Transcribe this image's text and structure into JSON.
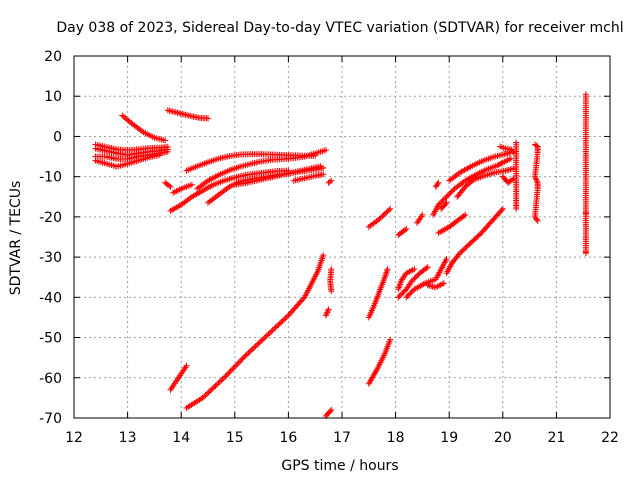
{
  "chart_data": {
    "type": "scatter",
    "title": "Day 038 of 2023, Sidereal Day-to-day VTEC variation (SDTVAR) for receiver mchl",
    "xlabel": "GPS time / hours",
    "ylabel": "SDTVAR / TECUs",
    "xlim": [
      12,
      22
    ],
    "ylim": [
      -70,
      20
    ],
    "x_ticks": [
      12,
      13,
      14,
      15,
      16,
      17,
      18,
      19,
      20,
      21,
      22
    ],
    "y_ticks": [
      -70,
      -60,
      -50,
      -40,
      -30,
      -20,
      -10,
      0,
      10,
      20
    ],
    "x_tick_labels": [
      "12",
      "13",
      "14",
      "15",
      "16",
      "17",
      "18",
      "19",
      "20",
      "21",
      "22"
    ],
    "y_tick_labels": [
      "-70",
      "-60",
      "-50",
      "-40",
      "-30",
      "-20",
      "-10",
      "0",
      "10",
      "20"
    ],
    "grid": true,
    "marker": "+",
    "color": "#ff0000",
    "series": [
      {
        "values": [
          [
            12.4,
            -2.0
          ],
          [
            12.6,
            -2.6
          ],
          [
            12.8,
            -3.2
          ],
          [
            13.0,
            -3.4
          ],
          [
            13.2,
            -3.2
          ],
          [
            13.4,
            -2.9
          ],
          [
            13.6,
            -2.8
          ],
          [
            13.75,
            -2.6
          ]
        ]
      },
      {
        "values": [
          [
            12.4,
            -3.0
          ],
          [
            12.6,
            -3.6
          ],
          [
            12.8,
            -4.2
          ],
          [
            13.0,
            -4.6
          ],
          [
            13.2,
            -4.2
          ],
          [
            13.4,
            -3.8
          ],
          [
            13.6,
            -3.5
          ],
          [
            13.75,
            -3.2
          ]
        ]
      },
      {
        "values": [
          [
            12.4,
            -5.0
          ],
          [
            12.6,
            -5.0
          ],
          [
            12.8,
            -5.6
          ],
          [
            13.0,
            -5.6
          ],
          [
            13.2,
            -5.0
          ],
          [
            13.4,
            -4.6
          ],
          [
            13.6,
            -4.2
          ],
          [
            13.75,
            -3.8
          ]
        ]
      },
      {
        "values": [
          [
            12.4,
            -6.0
          ],
          [
            12.8,
            -7.5
          ],
          [
            13.0,
            -6.8
          ],
          [
            13.2,
            -6.0
          ],
          [
            13.4,
            -5.2
          ],
          [
            13.6,
            -4.6
          ]
        ]
      },
      {
        "values": [
          [
            12.9,
            5.2
          ],
          [
            13.1,
            3.0
          ],
          [
            13.3,
            1.0
          ],
          [
            13.5,
            -0.3
          ],
          [
            13.7,
            -1.0
          ]
        ]
      },
      {
        "values": [
          [
            13.75,
            6.5
          ],
          [
            13.9,
            6.0
          ],
          [
            14.05,
            5.5
          ],
          [
            14.2,
            5.0
          ],
          [
            14.35,
            4.6
          ],
          [
            14.5,
            4.5
          ]
        ]
      },
      {
        "values": [
          [
            13.7,
            -11.5
          ],
          [
            13.8,
            -12.5
          ]
        ]
      },
      {
        "values": [
          [
            13.85,
            -14.0
          ],
          [
            14.0,
            -13.0
          ],
          [
            14.2,
            -12.0
          ]
        ]
      },
      {
        "values": [
          [
            13.8,
            -18.5
          ],
          [
            14.0,
            -17.0
          ],
          [
            14.2,
            -15.0
          ],
          [
            14.4,
            -13.5
          ],
          [
            14.6,
            -12.0
          ],
          [
            14.8,
            -11.0
          ],
          [
            15.0,
            -10.2
          ],
          [
            15.2,
            -9.6
          ],
          [
            15.4,
            -9.2
          ],
          [
            15.6,
            -8.9
          ],
          [
            15.8,
            -8.6
          ],
          [
            16.0,
            -8.5
          ]
        ]
      },
      {
        "values": [
          [
            14.1,
            -8.5
          ],
          [
            14.3,
            -7.4
          ],
          [
            14.5,
            -6.4
          ],
          [
            14.7,
            -5.5
          ],
          [
            14.9,
            -4.9
          ],
          [
            15.1,
            -4.5
          ],
          [
            15.3,
            -4.4
          ],
          [
            15.5,
            -4.4
          ],
          [
            15.7,
            -4.5
          ],
          [
            15.9,
            -4.6
          ],
          [
            16.1,
            -4.7
          ],
          [
            16.3,
            -4.8
          ],
          [
            16.5,
            -4.8
          ]
        ]
      },
      {
        "values": [
          [
            14.3,
            -13.0
          ],
          [
            14.5,
            -11.0
          ],
          [
            14.7,
            -9.6
          ],
          [
            14.9,
            -8.4
          ],
          [
            15.1,
            -7.5
          ],
          [
            15.3,
            -6.8
          ],
          [
            15.5,
            -6.2
          ],
          [
            15.7,
            -5.8
          ],
          [
            15.9,
            -5.6
          ],
          [
            16.1,
            -5.4
          ],
          [
            16.3,
            -5.0
          ],
          [
            16.5,
            -4.2
          ],
          [
            16.7,
            -3.4
          ]
        ]
      },
      {
        "values": [
          [
            14.5,
            -16.5
          ],
          [
            14.7,
            -14.5
          ],
          [
            14.9,
            -12.5
          ],
          [
            15.1,
            -11.2
          ],
          [
            15.3,
            -10.6
          ],
          [
            15.5,
            -10.2
          ],
          [
            15.7,
            -9.8
          ],
          [
            15.9,
            -9.4
          ],
          [
            16.1,
            -9.0
          ],
          [
            16.3,
            -8.6
          ],
          [
            16.5,
            -8.2
          ],
          [
            16.65,
            -7.8
          ]
        ]
      },
      {
        "values": [
          [
            15.0,
            -12.0
          ],
          [
            15.2,
            -11.6
          ],
          [
            15.4,
            -11.0
          ],
          [
            15.6,
            -10.4
          ],
          [
            15.8,
            -9.8
          ],
          [
            16.0,
            -9.2
          ],
          [
            16.2,
            -8.6
          ],
          [
            16.4,
            -8.0
          ],
          [
            16.6,
            -7.4
          ]
        ]
      },
      {
        "values": [
          [
            16.1,
            -11.0
          ],
          [
            16.3,
            -10.4
          ],
          [
            16.5,
            -9.8
          ],
          [
            16.65,
            -9.4
          ]
        ]
      },
      {
        "values": [
          [
            16.8,
            -11.0
          ],
          [
            16.75,
            -11.5
          ]
        ]
      },
      {
        "values": [
          [
            13.8,
            -63.0
          ],
          [
            13.9,
            -61.0
          ],
          [
            14.0,
            -59.0
          ],
          [
            14.1,
            -57.0
          ]
        ]
      },
      {
        "values": [
          [
            14.1,
            -67.5
          ],
          [
            14.4,
            -65.0
          ],
          [
            14.8,
            -60.0
          ],
          [
            15.2,
            -54.5
          ],
          [
            15.6,
            -49.5
          ],
          [
            16.0,
            -44.5
          ],
          [
            16.3,
            -40.0
          ],
          [
            16.55,
            -33.5
          ],
          [
            16.65,
            -29.5
          ]
        ]
      },
      {
        "values": [
          [
            16.7,
            -44.5
          ],
          [
            16.75,
            -43.0
          ]
        ]
      },
      {
        "values": [
          [
            16.8,
            -33.0
          ],
          [
            16.78,
            -36.0
          ],
          [
            16.8,
            -38.5
          ]
        ]
      },
      {
        "values": [
          [
            16.7,
            -69.5
          ],
          [
            16.8,
            -68.0
          ]
        ]
      },
      {
        "values": [
          [
            17.5,
            -61.5
          ],
          [
            17.65,
            -58.0
          ],
          [
            17.8,
            -54.0
          ],
          [
            17.9,
            -50.5
          ]
        ]
      },
      {
        "values": [
          [
            17.5,
            -45.0
          ],
          [
            17.6,
            -42.0
          ],
          [
            17.7,
            -38.5
          ],
          [
            17.8,
            -35.0
          ],
          [
            17.85,
            -33.0
          ]
        ]
      },
      {
        "values": [
          [
            17.5,
            -22.5
          ],
          [
            17.7,
            -20.5
          ],
          [
            17.9,
            -18.0
          ]
        ]
      },
      {
        "values": [
          [
            18.05,
            -24.5
          ],
          [
            18.2,
            -23.0
          ]
        ]
      },
      {
        "values": [
          [
            18.05,
            -40.0
          ],
          [
            18.2,
            -38.0
          ],
          [
            18.3,
            -36.0
          ],
          [
            18.45,
            -34.0
          ],
          [
            18.6,
            -32.5
          ]
        ]
      },
      {
        "values": [
          [
            18.05,
            -38.0
          ],
          [
            18.1,
            -36.0
          ],
          [
            18.2,
            -34.0
          ],
          [
            18.35,
            -33.0
          ]
        ]
      },
      {
        "values": [
          [
            18.2,
            -40.0
          ],
          [
            18.35,
            -38.0
          ],
          [
            18.55,
            -36.5
          ],
          [
            18.75,
            -35.5
          ],
          [
            18.85,
            -33.0
          ],
          [
            18.95,
            -30.5
          ]
        ]
      },
      {
        "values": [
          [
            18.6,
            -37.0
          ],
          [
            18.75,
            -37.5
          ],
          [
            18.9,
            -36.5
          ]
        ]
      },
      {
        "values": [
          [
            18.4,
            -21.5
          ],
          [
            18.5,
            -19.5
          ]
        ]
      },
      {
        "values": [
          [
            18.7,
            -19.5
          ],
          [
            18.8,
            -17.0
          ],
          [
            18.95,
            -15.0
          ],
          [
            19.1,
            -13.0
          ],
          [
            19.3,
            -11.0
          ],
          [
            19.5,
            -9.5
          ],
          [
            19.7,
            -8.2
          ],
          [
            19.9,
            -7.2
          ],
          [
            20.0,
            -6.5
          ],
          [
            20.15,
            -5.5
          ]
        ]
      },
      {
        "values": [
          [
            18.8,
            -24.0
          ],
          [
            19.0,
            -22.5
          ],
          [
            19.15,
            -21.0
          ],
          [
            19.3,
            -19.5
          ]
        ]
      },
      {
        "values": [
          [
            18.95,
            -34.0
          ],
          [
            19.05,
            -31.5
          ],
          [
            19.2,
            -29.0
          ],
          [
            19.4,
            -26.5
          ],
          [
            19.6,
            -24.0
          ],
          [
            19.8,
            -21.0
          ],
          [
            20.0,
            -18.0
          ]
        ]
      },
      {
        "values": [
          [
            19.15,
            -15.0
          ],
          [
            19.3,
            -12.5
          ],
          [
            19.45,
            -10.8
          ],
          [
            19.65,
            -9.8
          ],
          [
            19.85,
            -9.0
          ],
          [
            20.05,
            -8.5
          ],
          [
            20.2,
            -8.0
          ]
        ]
      },
      {
        "values": [
          [
            19.0,
            -11.0
          ],
          [
            19.2,
            -9.0
          ],
          [
            19.4,
            -7.5
          ],
          [
            19.6,
            -6.2
          ],
          [
            19.8,
            -5.2
          ],
          [
            20.0,
            -4.5
          ],
          [
            20.15,
            -4.0
          ]
        ]
      },
      {
        "values": [
          [
            19.95,
            -2.5
          ],
          [
            20.05,
            -3.0
          ],
          [
            20.15,
            -3.2
          ],
          [
            20.2,
            -4.0
          ]
        ]
      },
      {
        "values": [
          [
            18.85,
            -18.0
          ],
          [
            18.95,
            -16.5
          ]
        ]
      },
      {
        "values": [
          [
            18.75,
            -12.5
          ],
          [
            18.8,
            -11.5
          ]
        ]
      },
      {
        "values": [
          [
            20.0,
            -10.0
          ],
          [
            20.1,
            -11.5
          ],
          [
            20.2,
            -10.5
          ]
        ]
      },
      {
        "values": [
          [
            20.25,
            -1.5
          ],
          [
            20.25,
            -6.0
          ],
          [
            20.25,
            -11.0
          ],
          [
            20.25,
            -15.5
          ],
          [
            20.25,
            -18.0
          ]
        ]
      },
      {
        "values": [
          [
            20.6,
            -2.0
          ],
          [
            20.65,
            -2.5
          ],
          [
            20.65,
            -4.0
          ],
          [
            20.6,
            -10.0
          ],
          [
            20.65,
            -11.5
          ],
          [
            20.65,
            -13.0
          ],
          [
            20.6,
            -20.0
          ],
          [
            20.65,
            -21.0
          ]
        ]
      },
      {
        "values": [
          [
            21.55,
            10.5
          ],
          [
            21.55,
            0.0
          ],
          [
            21.55,
            -7.0
          ],
          [
            21.55,
            -18.5
          ],
          [
            21.55,
            -19.5
          ],
          [
            21.55,
            -28.5
          ],
          [
            21.55,
            -29.0
          ]
        ]
      }
    ]
  }
}
